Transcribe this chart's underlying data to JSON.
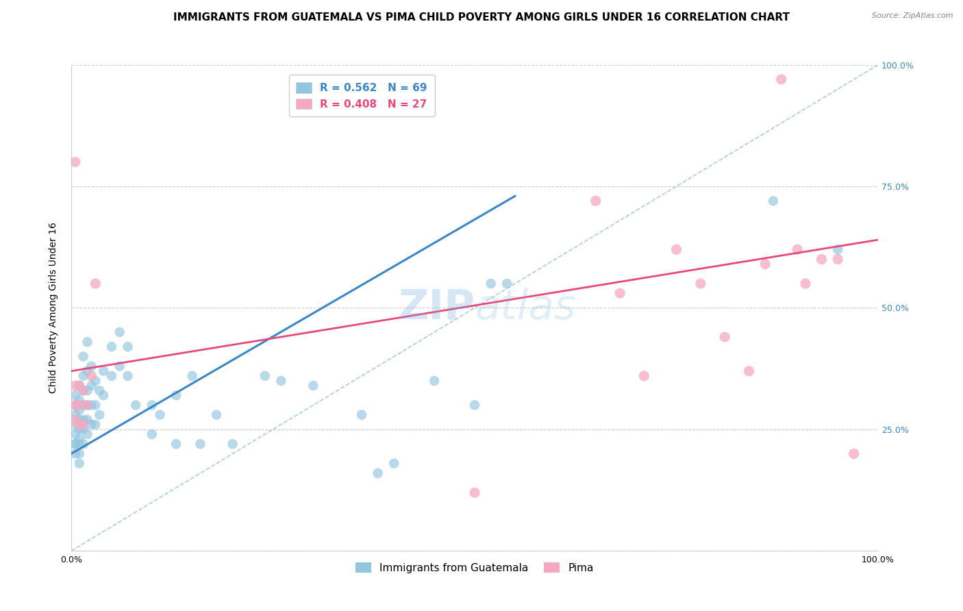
{
  "title": "IMMIGRANTS FROM GUATEMALA VS PIMA CHILD POVERTY AMONG GIRLS UNDER 16 CORRELATION CHART",
  "source": "Source: ZipAtlas.com",
  "ylabel": "Child Poverty Among Girls Under 16",
  "xlim": [
    0,
    1
  ],
  "ylim": [
    0,
    1
  ],
  "xtick_positions": [
    0,
    0.1,
    0.2,
    0.3,
    0.4,
    0.5,
    0.6,
    0.7,
    0.8,
    0.9,
    1.0
  ],
  "xticklabels": [
    "0.0%",
    "",
    "",
    "",
    "",
    "",
    "",
    "",
    "",
    "",
    "100.0%"
  ],
  "ytick_positions": [
    0,
    0.25,
    0.5,
    0.75,
    1.0
  ],
  "ytick_labels_right": [
    "",
    "25.0%",
    "50.0%",
    "75.0%",
    "100.0%"
  ],
  "legend1_label": "R = 0.562   N = 69",
  "legend2_label": "R = 0.408   N = 27",
  "blue_color": "#92c5de",
  "pink_color": "#f4a9c0",
  "blue_line_color": "#3a86c8",
  "pink_line_color": "#e8497a",
  "diagonal_color": "#aaccdd",
  "blue_scatter_x": [
    0.005,
    0.005,
    0.005,
    0.005,
    0.005,
    0.005,
    0.005,
    0.005,
    0.01,
    0.01,
    0.01,
    0.01,
    0.01,
    0.01,
    0.01,
    0.01,
    0.01,
    0.015,
    0.015,
    0.015,
    0.015,
    0.015,
    0.015,
    0.015,
    0.02,
    0.02,
    0.02,
    0.02,
    0.02,
    0.02,
    0.025,
    0.025,
    0.025,
    0.025,
    0.03,
    0.03,
    0.03,
    0.035,
    0.035,
    0.04,
    0.04,
    0.05,
    0.05,
    0.06,
    0.06,
    0.07,
    0.07,
    0.08,
    0.1,
    0.1,
    0.11,
    0.13,
    0.13,
    0.15,
    0.16,
    0.18,
    0.2,
    0.24,
    0.26,
    0.3,
    0.36,
    0.38,
    0.4,
    0.45,
    0.5,
    0.52,
    0.54,
    0.87,
    0.95
  ],
  "blue_scatter_y": [
    0.2,
    0.22,
    0.24,
    0.26,
    0.28,
    0.3,
    0.32,
    0.22,
    0.2,
    0.23,
    0.25,
    0.27,
    0.29,
    0.31,
    0.34,
    0.22,
    0.18,
    0.22,
    0.25,
    0.27,
    0.3,
    0.33,
    0.36,
    0.4,
    0.24,
    0.27,
    0.3,
    0.33,
    0.37,
    0.43,
    0.26,
    0.3,
    0.34,
    0.38,
    0.26,
    0.3,
    0.35,
    0.28,
    0.33,
    0.32,
    0.37,
    0.36,
    0.42,
    0.38,
    0.45,
    0.36,
    0.42,
    0.3,
    0.3,
    0.24,
    0.28,
    0.32,
    0.22,
    0.36,
    0.22,
    0.28,
    0.22,
    0.36,
    0.35,
    0.34,
    0.28,
    0.16,
    0.18,
    0.35,
    0.3,
    0.55,
    0.55,
    0.72,
    0.62
  ],
  "pink_scatter_x": [
    0.005,
    0.005,
    0.005,
    0.005,
    0.01,
    0.01,
    0.01,
    0.015,
    0.015,
    0.02,
    0.025,
    0.03,
    0.5,
    0.65,
    0.68,
    0.71,
    0.75,
    0.78,
    0.81,
    0.84,
    0.86,
    0.88,
    0.9,
    0.91,
    0.93,
    0.95,
    0.97
  ],
  "pink_scatter_y": [
    0.27,
    0.3,
    0.34,
    0.8,
    0.26,
    0.3,
    0.34,
    0.26,
    0.33,
    0.3,
    0.36,
    0.55,
    0.12,
    0.72,
    0.53,
    0.36,
    0.62,
    0.55,
    0.44,
    0.37,
    0.59,
    0.97,
    0.62,
    0.55,
    0.6,
    0.6,
    0.2
  ],
  "blue_line_x": [
    0.0,
    0.55
  ],
  "blue_line_y": [
    0.2,
    0.73
  ],
  "pink_line_x": [
    0.0,
    1.0
  ],
  "pink_line_y": [
    0.37,
    0.64
  ],
  "watermark_zip": "ZIP",
  "watermark_atlas": "atlas",
  "title_fontsize": 11,
  "axis_label_fontsize": 10,
  "tick_fontsize": 9,
  "legend_fontsize": 11
}
